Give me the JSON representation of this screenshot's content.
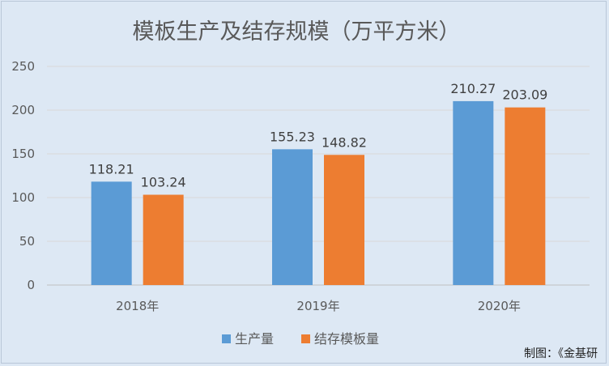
{
  "chart_data": {
    "type": "bar",
    "title": "模板生产及结存规模（万平方米）",
    "categories": [
      "2018年",
      "2019年",
      "2020年"
    ],
    "series": [
      {
        "name": "生产量",
        "values": [
          118.21,
          155.23,
          210.27
        ]
      },
      {
        "name": "结存模板量",
        "values": [
          103.24,
          148.82,
          203.09
        ]
      }
    ],
    "ylim": [
      0,
      250
    ],
    "yticks": [
      0,
      50,
      100,
      150,
      200,
      250
    ],
    "grid": true,
    "legend_position": "bottom",
    "colors": [
      "#5b9bd5",
      "#ed7d31"
    ],
    "data_labels": true
  },
  "footer": {
    "credit": "制图：《金基研"
  }
}
